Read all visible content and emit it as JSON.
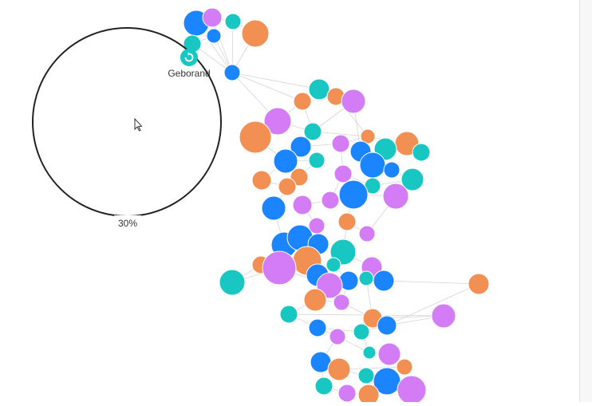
{
  "colors": {
    "blue": "#1a85ff",
    "purple": "#d37cf5",
    "teal": "#18c7c2",
    "orange": "#f28f53",
    "edge": "#d4d4d8",
    "lens_stroke": "#222222"
  },
  "lens": {
    "percent_label": "30%"
  },
  "focused_node": {
    "label": "Geborand",
    "color": "teal",
    "icon": "refresh-icon"
  },
  "cursor": {
    "icon": "cursor-arrow-icon"
  }
}
